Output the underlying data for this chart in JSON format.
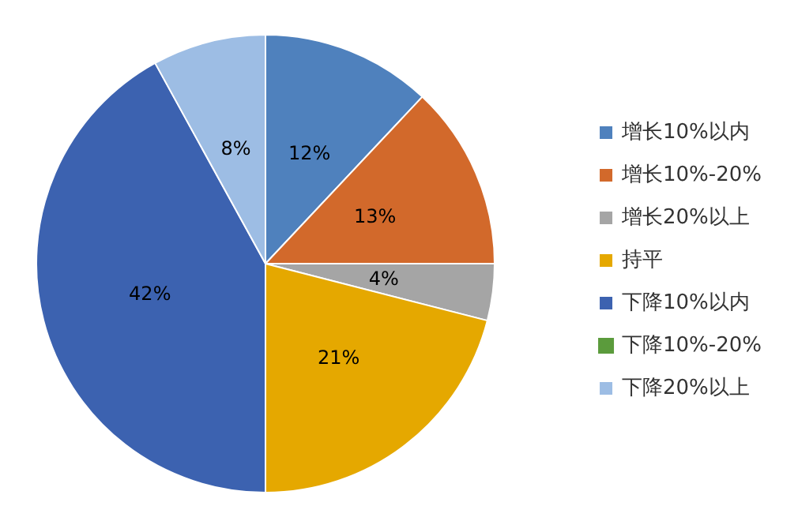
{
  "chart_data": {
    "type": "pie",
    "categories": [
      "增长10%以内",
      "增长10%-20%",
      "增长20%以上",
      "持平",
      "下降10%以内",
      "下降10%-20%",
      "下降20%以上"
    ],
    "values": [
      12,
      13,
      4,
      21,
      42,
      0,
      8
    ],
    "colors": [
      "#4f81bd",
      "#d2692b",
      "#a5a5a5",
      "#e5a800",
      "#3c62b0",
      "#5b9b3c",
      "#9dbde4"
    ],
    "value_labels": [
      "12%",
      "13%",
      "4%",
      "21%",
      "42%",
      null,
      "8%"
    ],
    "legend": "right"
  }
}
